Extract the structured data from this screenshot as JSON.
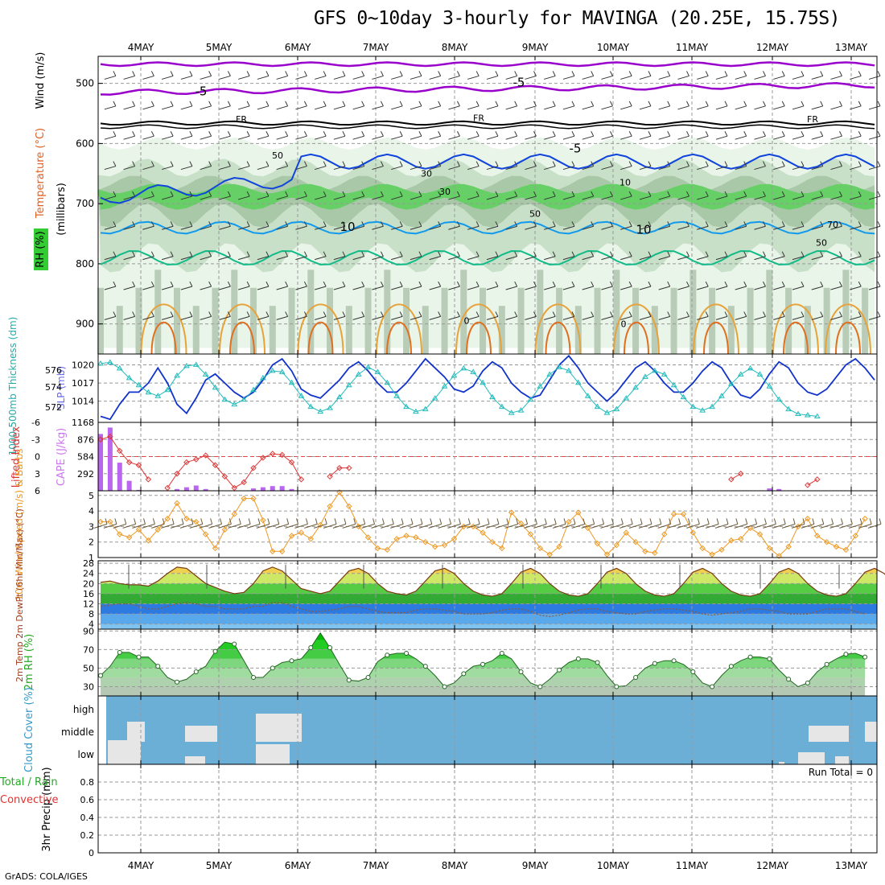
{
  "title": "GFS 0~10day 3-hourly for MAVINGA (20.25E, 15.75S)",
  "footer": "GrADS: COLA/IGES",
  "date_labels": [
    "4MAY",
    "5MAY",
    "6MAY",
    "7MAY",
    "8MAY",
    "9MAY",
    "10MAY",
    "11MAY",
    "12MAY",
    "13MAY"
  ],
  "colors": {
    "rh_green": "#33cc33",
    "temp_purple": "#9900cc",
    "temp_blue": "#1144dd",
    "thick_cyan": "#22bbbb",
    "slp_blue": "#1133cc",
    "cape_bar": "#bb66ee",
    "lifted_red": "#dd3333",
    "wind_orange": "#ee9922",
    "cloud_blue": "#6baed6"
  },
  "chart_data": [
    {
      "type": "heatmap",
      "panel": "upper-air",
      "ylabel": "(millibars)",
      "side_labels": {
        "wind": "Wind (m/s)",
        "temp": "Temperature (°C)",
        "rh": "RH (%)"
      },
      "y_ticks": [
        500,
        600,
        700,
        800,
        900
      ],
      "contour_labels": [
        "-5",
        "-5",
        "FR",
        "FR",
        "FR",
        "-5",
        "10",
        "10",
        "0",
        "0",
        "50",
        "30",
        "30",
        "10",
        "50",
        "50",
        "70"
      ]
    },
    {
      "type": "line",
      "panel": "thickness-slp",
      "ylabel_left": "1000-500mb Thickness (dm)",
      "ylabel_right": "SLP (mb)",
      "y_ticks_left": [
        "576",
        "574",
        "572"
      ],
      "y_ticks_right": [
        "1020",
        "1017",
        "1014"
      ],
      "series": [
        {
          "name": "SLP (mb)",
          "values": [
            1011.5,
            1011,
            1013.5,
            1015.5,
            1015.5,
            1017,
            1019.5,
            1017,
            1013.5,
            1012,
            1014.5,
            1017.5,
            1018.5,
            1017,
            1015.5,
            1014.5,
            1015.5,
            1017.5,
            1020,
            1021,
            1019,
            1016,
            1015,
            1014.5,
            1016,
            1017.5,
            1019.5,
            1020.5,
            1019,
            1017,
            1015.5,
            1015.5,
            1017,
            1019,
            1021,
            1019.5,
            1018,
            1016,
            1015.5,
            1016.5,
            1019,
            1020.5,
            1019.5,
            1017,
            1015.5,
            1014.5,
            1015,
            1017.5,
            1020,
            1021.5,
            1019.5,
            1017,
            1015.5,
            1014,
            1015.5,
            1017.5,
            1019.5,
            1020.5,
            1019,
            1017,
            1015.5,
            1015.5,
            1017,
            1019,
            1020.5,
            1019.5,
            1017,
            1015,
            1014.5,
            1016,
            1018.5,
            1020.5,
            1019.5,
            1017,
            1015.5,
            1015,
            1016,
            1018,
            1020,
            1021,
            1019.5,
            1017.5
          ]
        },
        {
          "name": "Thickness (dm)",
          "values": [
            576.2,
            576.3,
            575.8,
            575,
            574.4,
            573.8,
            573.5,
            574,
            575.2,
            576,
            576.1,
            575.3,
            574.2,
            573.2,
            572.8,
            573.2,
            574,
            575,
            575.6,
            575.5,
            574.6,
            573.5,
            572.6,
            572.2,
            572.5,
            573.4,
            574.4,
            575.3,
            575.9,
            575.5,
            574.6,
            573.5,
            572.6,
            572.2,
            572.4,
            573.3,
            574.3,
            575.2,
            575.8,
            575.5,
            574.6,
            573.4,
            572.6,
            572.1,
            572.3,
            573.2,
            574.3,
            575.3,
            575.9,
            575.6,
            574.6,
            573.5,
            572.6,
            572.1,
            572.4,
            573.3,
            574.2,
            575.1,
            575.6,
            575.3,
            574.4,
            573.4,
            572.6,
            572.3,
            572.6,
            573.5,
            574.5,
            575.3,
            575.8,
            575.3,
            574.3,
            573.2,
            572.4,
            572,
            571.9,
            571.8
          ]
        }
      ]
    },
    {
      "type": "bar",
      "panel": "cape-lifted",
      "ylabel_left": "Lifted Index",
      "ylabel_right": "CAPE (J/kg)",
      "y_ticks_left": [
        "-6",
        "-3",
        "0",
        "3",
        "6"
      ],
      "y_ticks_right": [
        "1168",
        "876",
        "584",
        "292"
      ],
      "series": [
        {
          "name": "CAPE (J/kg)",
          "values": [
            970,
            1080,
            480,
            170,
            15,
            0,
            0,
            0,
            30,
            60,
            90,
            30,
            0,
            0,
            0,
            0,
            40,
            60,
            80,
            80,
            30,
            0,
            0,
            0,
            0,
            0,
            0,
            0,
            0,
            0,
            0,
            0,
            0,
            0,
            0,
            0,
            0,
            0,
            0,
            0,
            0,
            0,
            0,
            0,
            0,
            0,
            0,
            0,
            0,
            0,
            0,
            0,
            0,
            0,
            0,
            0,
            0,
            0,
            0,
            0,
            0,
            0,
            0,
            0,
            0,
            0,
            0,
            0,
            0,
            0,
            40,
            30,
            0,
            0,
            0,
            0,
            0,
            0,
            0,
            0
          ]
        },
        {
          "name": "Lifted Index",
          "values": [
            -3,
            -3.5,
            -1,
            1,
            1.5,
            4,
            6,
            5.5,
            3,
            1,
            0.5,
            -0.2,
            1.5,
            3.5,
            5.5,
            4.5,
            2,
            0.2,
            -0.5,
            -0.3,
            1,
            4,
            6,
            6,
            3.5,
            2,
            2,
            6,
            6,
            6,
            6,
            6,
            6,
            6,
            6,
            6,
            6,
            6,
            6,
            6,
            6,
            6,
            6,
            6,
            6,
            6,
            6,
            6,
            6,
            6,
            6,
            6,
            6,
            6,
            6,
            6,
            6,
            6,
            6,
            6,
            6,
            6,
            6,
            6,
            6,
            6,
            4,
            3,
            6,
            6,
            6,
            6,
            6,
            6,
            5,
            4,
            6,
            6,
            6,
            6,
            6,
            6
          ]
        }
      ]
    },
    {
      "type": "line",
      "panel": "wind10m",
      "ylabel": "10m Wind Speed (m/s) & Barbs",
      "y_ticks": [
        "5",
        "4",
        "3",
        "2",
        "1"
      ],
      "series": [
        {
          "name": "10m Wind Speed (m/s)",
          "values": [
            3.3,
            3.3,
            2.5,
            2.3,
            2.8,
            2.1,
            2.8,
            3.5,
            4.5,
            3.5,
            3.3,
            2.5,
            1.6,
            2.8,
            3.8,
            4.8,
            4.8,
            3.4,
            1.4,
            1.4,
            2.4,
            2.6,
            2.2,
            3.1,
            4.3,
            5.2,
            4.3,
            3,
            2.3,
            1.6,
            1.5,
            2.2,
            2.4,
            2.3,
            2,
            1.7,
            1.8,
            2.2,
            3,
            3,
            2.6,
            2,
            1.6,
            3.9,
            3.2,
            2.5,
            1.6,
            1.2,
            1.7,
            3.3,
            3.9,
            2.9,
            1.9,
            1.2,
            1.8,
            2.6,
            2,
            1.4,
            1.3,
            2.5,
            3.8,
            3.8,
            2.6,
            1.6,
            1.2,
            1.5,
            2.1,
            2.2,
            2.9,
            2.5,
            1.6,
            1.1,
            1.7,
            3,
            3.5,
            2.4,
            2,
            1.7,
            1.5,
            2.4,
            3.5
          ]
        }
      ]
    },
    {
      "type": "area",
      "panel": "temp2m",
      "ylabel": "2m Temp 2m DewPt (6hr Min/Max) (°C)",
      "y_ticks": [
        "28",
        "24",
        "20",
        "16",
        "12",
        "8",
        "4"
      ],
      "series": [
        {
          "name": "2m Temp (°C)",
          "values": [
            20.5,
            21,
            20,
            19.5,
            19.5,
            19,
            21,
            24,
            26.5,
            26,
            23,
            20,
            18.5,
            17,
            16,
            16.5,
            20,
            25,
            26.5,
            25,
            21.5,
            18,
            17,
            16,
            17,
            21,
            25,
            26,
            24,
            20,
            17,
            16,
            15.5,
            17,
            21,
            25,
            26,
            24,
            20,
            17,
            15.5,
            15,
            16,
            20,
            24.5,
            26,
            24,
            20,
            17,
            15.5,
            15,
            16,
            20,
            24.5,
            26,
            24,
            20,
            17,
            15.5,
            15,
            16,
            20,
            24.5,
            26,
            24,
            20,
            17,
            15.5,
            15,
            16,
            20,
            24.5,
            26,
            24,
            20,
            17,
            15.5,
            15,
            16,
            20,
            24.5,
            26,
            24,
            20,
            17,
            16,
            15
          ]
        },
        {
          "name": "2m DewPt (°C)",
          "values": [
            11,
            11.5,
            12,
            12,
            11,
            10,
            10,
            11,
            12,
            12.5,
            12,
            11,
            11,
            10,
            10,
            10,
            11,
            11,
            12.5,
            12.5,
            11,
            10,
            9,
            9,
            9.5,
            10,
            11,
            11,
            10,
            9,
            8.5,
            8.5,
            8.5,
            9.5,
            10,
            10,
            9.5,
            9,
            8,
            8,
            8,
            8.5,
            9.5,
            10,
            10,
            9,
            7.5,
            7,
            7.5,
            8.5,
            9.5,
            10,
            10,
            9,
            8.5,
            8,
            8,
            9,
            9.5,
            10,
            10,
            9.5,
            9,
            8,
            7.5,
            8,
            8.5,
            9,
            10,
            10,
            9.5,
            9,
            8,
            8,
            8,
            9,
            10,
            10,
            10,
            9,
            8
          ]
        }
      ]
    },
    {
      "type": "area",
      "panel": "rh2m",
      "ylabel": "2m RH (%)",
      "y_ticks": [
        "90",
        "70",
        "50",
        "30"
      ],
      "series": [
        {
          "name": "2m RH (%)",
          "values": [
            42,
            52,
            67,
            67,
            62,
            62,
            52,
            40,
            35,
            38,
            46,
            52,
            68,
            78,
            76,
            58,
            40,
            40,
            50,
            56,
            58,
            60,
            72,
            88,
            72,
            54,
            37,
            36,
            40,
            57,
            64,
            66,
            66,
            60,
            52,
            42,
            30,
            34,
            44,
            52,
            54,
            58,
            66,
            60,
            46,
            34,
            30,
            38,
            48,
            56,
            60,
            60,
            56,
            42,
            30,
            31,
            40,
            50,
            55,
            58,
            58,
            54,
            46,
            34,
            30,
            42,
            52,
            58,
            62,
            62,
            60,
            48,
            38,
            30,
            34,
            46,
            54,
            60,
            65,
            66,
            62
          ]
        }
      ]
    },
    {
      "type": "bar",
      "panel": "cloud",
      "ylabel": "Cloud Cover (%)",
      "y_ticks": [
        "high",
        "middle",
        "low"
      ]
    },
    {
      "type": "bar",
      "panel": "precip",
      "ylabel": "3hr Precip (mm)",
      "side_labels": {
        "total": "Total / Rain",
        "conv": "Convective"
      },
      "run_total": "Run Total = 0",
      "y_ticks": [
        "0.8",
        "0.6",
        "0.4",
        "0.2",
        "0"
      ],
      "ylim": [
        0,
        1
      ],
      "series": [
        {
          "name": "Total / Rain",
          "values": [
            0
          ]
        },
        {
          "name": "Convective",
          "values": [
            0
          ]
        }
      ]
    }
  ]
}
